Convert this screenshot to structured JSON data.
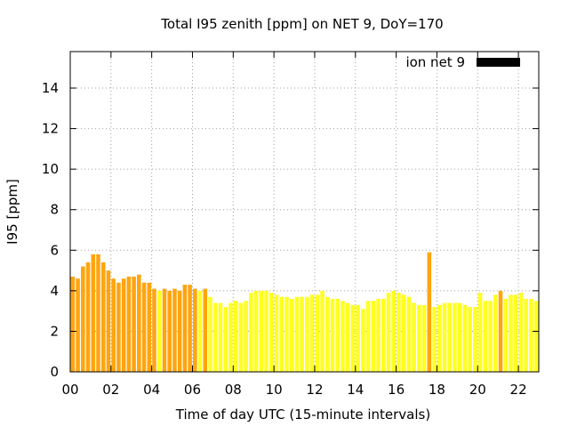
{
  "chart_data": {
    "type": "bar",
    "title": "Total I95 zenith [ppm] on NET 9, DoY=170",
    "xlabel": "Time of day UTC (15-minute intervals)",
    "ylabel": "I95 [ppm]",
    "xlim": [
      0,
      23
    ],
    "ylim": [
      0,
      15.8
    ],
    "xticks": [
      "00",
      "02",
      "04",
      "06",
      "08",
      "10",
      "12",
      "14",
      "16",
      "18",
      "20",
      "22"
    ],
    "yticks": [
      "0",
      "2",
      "4",
      "6",
      "8",
      "10",
      "12",
      "14"
    ],
    "grid": true,
    "legend": {
      "position": "top-right",
      "entries": [
        {
          "label": "ion net 9",
          "color": "#000000"
        }
      ]
    },
    "bar_interval_hours": 0.25,
    "colors": {
      "high": "#ffa510",
      "low": "#ffff22"
    },
    "series": [
      {
        "name": "ion net 9",
        "x": [
          0.0,
          0.25,
          0.5,
          0.75,
          1.0,
          1.25,
          1.5,
          1.75,
          2.0,
          2.25,
          2.5,
          2.75,
          3.0,
          3.25,
          3.5,
          3.75,
          4.0,
          4.25,
          4.5,
          4.75,
          5.0,
          5.25,
          5.5,
          5.75,
          6.0,
          6.25,
          6.5,
          6.75,
          7.0,
          7.25,
          7.5,
          7.75,
          8.0,
          8.25,
          8.5,
          8.75,
          9.0,
          9.25,
          9.5,
          9.75,
          10.0,
          10.25,
          10.5,
          10.75,
          11.0,
          11.25,
          11.5,
          11.75,
          12.0,
          12.25,
          12.5,
          12.75,
          13.0,
          13.25,
          13.5,
          13.75,
          14.0,
          14.25,
          14.5,
          14.75,
          15.0,
          15.25,
          15.5,
          15.75,
          16.0,
          16.25,
          16.5,
          16.75,
          17.0,
          17.25,
          17.5,
          17.75,
          18.0,
          18.25,
          18.5,
          18.75,
          19.0,
          19.25,
          19.5,
          19.75,
          20.0,
          20.25,
          20.5,
          20.75,
          21.0,
          21.25,
          21.5,
          21.75,
          22.0,
          22.25,
          22.5,
          22.75
        ],
        "values": [
          4.7,
          4.6,
          5.2,
          5.4,
          5.8,
          5.8,
          5.4,
          5.0,
          4.6,
          4.4,
          4.6,
          4.7,
          4.7,
          4.8,
          4.4,
          4.4,
          4.1,
          4.0,
          4.1,
          4.0,
          4.1,
          4.0,
          4.3,
          4.3,
          4.1,
          4.0,
          4.1,
          3.7,
          3.4,
          3.4,
          3.2,
          3.4,
          3.5,
          3.4,
          3.5,
          3.9,
          4.0,
          4.0,
          4.0,
          3.9,
          3.8,
          3.7,
          3.7,
          3.6,
          3.7,
          3.7,
          3.7,
          3.8,
          3.8,
          4.0,
          3.7,
          3.6,
          3.6,
          3.5,
          3.4,
          3.3,
          3.3,
          3.1,
          3.5,
          3.5,
          3.6,
          3.6,
          3.9,
          4.0,
          3.9,
          3.8,
          3.7,
          3.4,
          3.3,
          3.3,
          5.9,
          3.2,
          3.3,
          3.4,
          3.4,
          3.4,
          3.4,
          3.3,
          3.2,
          3.2,
          3.9,
          3.5,
          3.5,
          3.8,
          4.0,
          3.6,
          3.8,
          3.8,
          3.9,
          3.6,
          3.6,
          3.5
        ],
        "colors": [
          "high",
          "high",
          "high",
          "high",
          "high",
          "high",
          "high",
          "high",
          "high",
          "high",
          "high",
          "high",
          "high",
          "high",
          "high",
          "high",
          "high",
          "low",
          "high",
          "high",
          "high",
          "high",
          "high",
          "high",
          "high",
          "low",
          "high",
          "low",
          "low",
          "low",
          "low",
          "low",
          "low",
          "low",
          "low",
          "low",
          "low",
          "low",
          "low",
          "low",
          "low",
          "low",
          "low",
          "low",
          "low",
          "low",
          "low",
          "low",
          "low",
          "low",
          "low",
          "low",
          "low",
          "low",
          "low",
          "low",
          "low",
          "low",
          "low",
          "low",
          "low",
          "low",
          "low",
          "low",
          "low",
          "low",
          "low",
          "low",
          "low",
          "low",
          "high",
          "low",
          "low",
          "low",
          "low",
          "low",
          "low",
          "low",
          "low",
          "low",
          "low",
          "low",
          "low",
          "low",
          "high",
          "low",
          "low",
          "low",
          "low",
          "low",
          "low",
          "low"
        ]
      }
    ]
  }
}
